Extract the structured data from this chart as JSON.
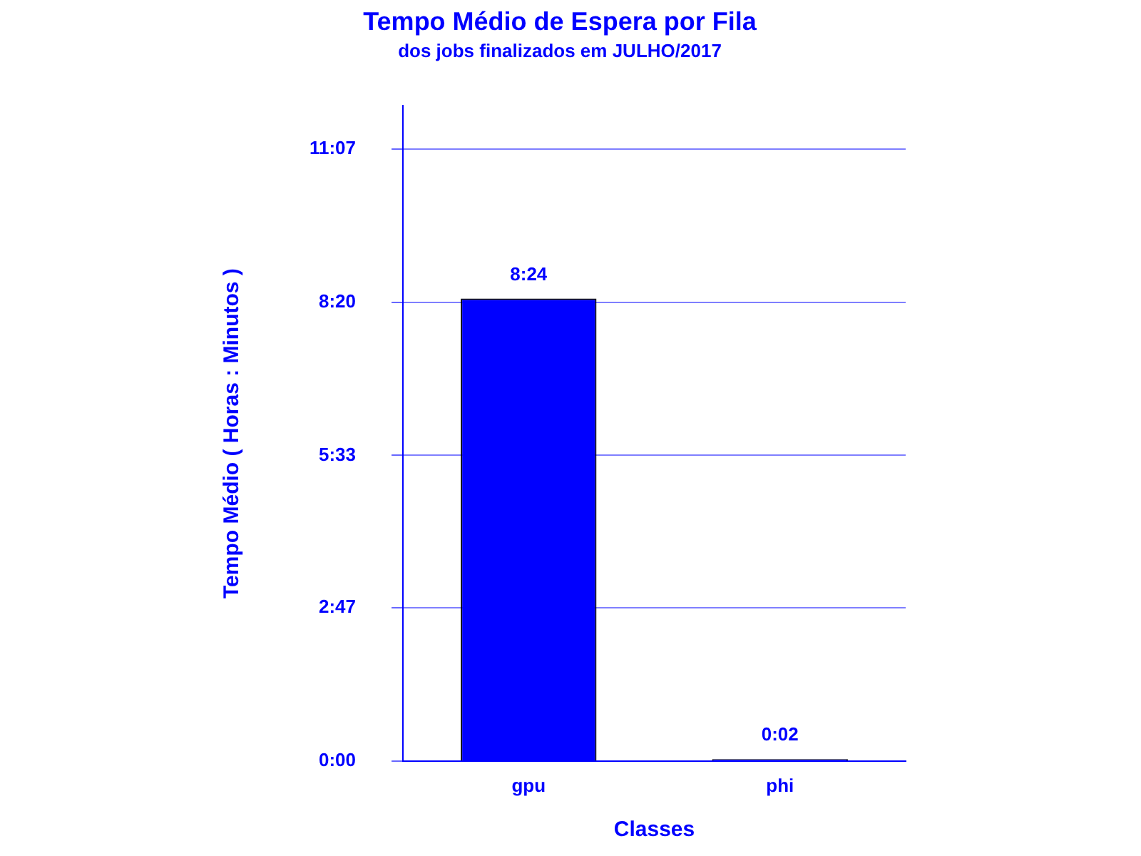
{
  "chart_data": {
    "type": "bar",
    "title": "Tempo Médio de Espera por Fila",
    "subtitle": "dos jobs finalizados em JULHO/2017",
    "xlabel": "Classes",
    "ylabel": "Tempo Médio ( Horas : Minutos )",
    "categories": [
      "gpu",
      "phi"
    ],
    "values": [
      8.4,
      0.0333
    ],
    "value_labels": [
      "8:24",
      "0:02"
    ],
    "colors": [
      "#0000ff",
      "#0000ff"
    ],
    "ylim": [
      0,
      11.9
    ],
    "yticks": [
      {
        "value": 0,
        "label": "0:00"
      },
      {
        "value": 2.7833,
        "label": "2:47"
      },
      {
        "value": 5.55,
        "label": "5:33"
      },
      {
        "value": 8.3333,
        "label": "8:20"
      },
      {
        "value": 11.1167,
        "label": "11:07"
      }
    ],
    "grid": "y",
    "legend": false
  }
}
